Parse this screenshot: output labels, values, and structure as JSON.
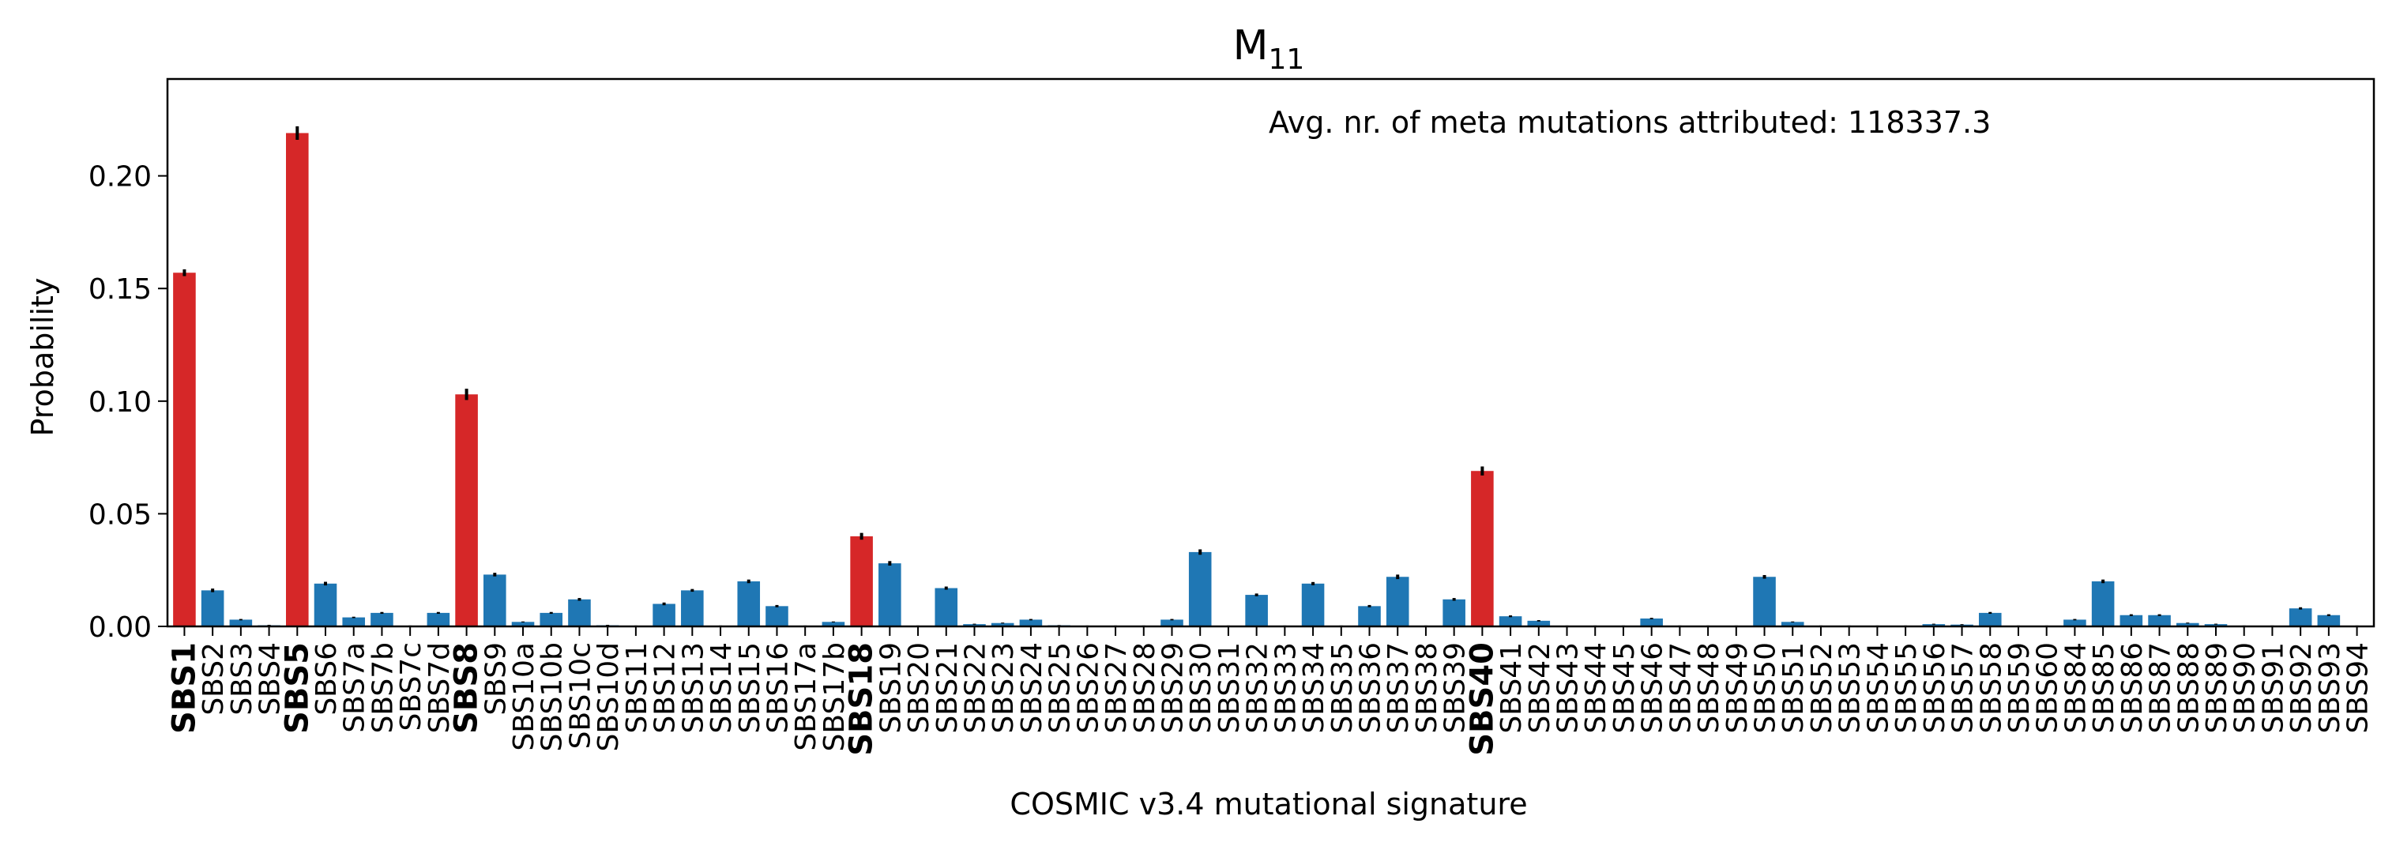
{
  "chart_data": {
    "type": "bar",
    "title": "M",
    "title_subscript": "11",
    "xlabel": "COSMIC v3.4 mutational signature",
    "ylabel": "Probability",
    "annotation": "Avg. nr. of meta mutations attributed: 118337.3",
    "ylim": [
      0,
      0.243
    ],
    "yticks": [
      "0.00",
      "0.05",
      "0.10",
      "0.15",
      "0.20"
    ],
    "grid": false,
    "colors": {
      "highlight": "#d62728",
      "normal": "#1f77b4",
      "error": "#000000"
    },
    "categories": [
      "SBS1",
      "SBS2",
      "SBS3",
      "SBS4",
      "SBS5",
      "SBS6",
      "SBS7a",
      "SBS7b",
      "SBS7c",
      "SBS7d",
      "SBS8",
      "SBS9",
      "SBS10a",
      "SBS10b",
      "SBS10c",
      "SBS10d",
      "SBS11",
      "SBS12",
      "SBS13",
      "SBS14",
      "SBS15",
      "SBS16",
      "SBS17a",
      "SBS17b",
      "SBS18",
      "SBS19",
      "SBS20",
      "SBS21",
      "SBS22",
      "SBS23",
      "SBS24",
      "SBS25",
      "SBS26",
      "SBS27",
      "SBS28",
      "SBS29",
      "SBS30",
      "SBS31",
      "SBS32",
      "SBS33",
      "SBS34",
      "SBS35",
      "SBS36",
      "SBS37",
      "SBS38",
      "SBS39",
      "SBS40",
      "SBS41",
      "SBS42",
      "SBS43",
      "SBS44",
      "SBS45",
      "SBS46",
      "SBS47",
      "SBS48",
      "SBS49",
      "SBS50",
      "SBS51",
      "SBS52",
      "SBS53",
      "SBS54",
      "SBS55",
      "SBS56",
      "SBS57",
      "SBS58",
      "SBS59",
      "SBS60",
      "SBS84",
      "SBS85",
      "SBS86",
      "SBS87",
      "SBS88",
      "SBS89",
      "SBS90",
      "SBS91",
      "SBS92",
      "SBS93",
      "SBS94"
    ],
    "values": [
      0.157,
      0.016,
      0.003,
      0.0005,
      0.219,
      0.019,
      0.004,
      0.006,
      0.0003,
      0.006,
      0.103,
      0.023,
      0.002,
      0.006,
      0.012,
      0.0005,
      0.0003,
      0.01,
      0.016,
      0.0003,
      0.02,
      0.009,
      0.0003,
      0.002,
      0.04,
      0.028,
      0.0003,
      0.017,
      0.001,
      0.0015,
      0.003,
      0.0005,
      0.0003,
      0.0003,
      0.0003,
      0.003,
      0.033,
      0.0003,
      0.014,
      0.0003,
      0.019,
      0.0003,
      0.009,
      0.022,
      0.0003,
      0.012,
      0.069,
      0.0045,
      0.0025,
      0.0003,
      0.0003,
      0.0003,
      0.0035,
      0.0003,
      0.0003,
      0.0003,
      0.022,
      0.002,
      0.0003,
      0.0003,
      0.0003,
      0.0003,
      0.001,
      0.0008,
      0.006,
      0.0003,
      0.0003,
      0.003,
      0.02,
      0.005,
      0.005,
      0.0015,
      0.001,
      0.0003,
      0.0003,
      0.008,
      0.005,
      0.0003
    ],
    "errors": [
      0.0015,
      0.0008,
      0.0003,
      0.0002,
      0.003,
      0.0008,
      0.0003,
      0.0004,
      0.0001,
      0.0004,
      0.0025,
      0.0008,
      0.0002,
      0.0004,
      0.0006,
      0.0002,
      0.0001,
      0.0006,
      0.0006,
      0.0001,
      0.0008,
      0.0005,
      0.0001,
      0.0002,
      0.0015,
      0.001,
      0.0001,
      0.0007,
      0.0002,
      0.0002,
      0.0003,
      0.0001,
      0.0001,
      0.0001,
      0.0001,
      0.0003,
      0.0012,
      0.0001,
      0.0006,
      0.0001,
      0.0007,
      0.0001,
      0.0005,
      0.001,
      0.0001,
      0.0006,
      0.002,
      0.0004,
      0.0003,
      0.0001,
      0.0001,
      0.0001,
      0.0003,
      0.0001,
      0.0001,
      0.0001,
      0.0008,
      0.0002,
      0.0001,
      0.0001,
      0.0001,
      0.0001,
      0.0002,
      0.0002,
      0.0004,
      0.0001,
      0.0001,
      0.0003,
      0.0008,
      0.0004,
      0.0004,
      0.0002,
      0.0002,
      0.0001,
      0.0001,
      0.0005,
      0.0004,
      0.0001
    ],
    "highlighted": [
      "SBS1",
      "SBS5",
      "SBS8",
      "SBS18",
      "SBS40"
    ]
  }
}
